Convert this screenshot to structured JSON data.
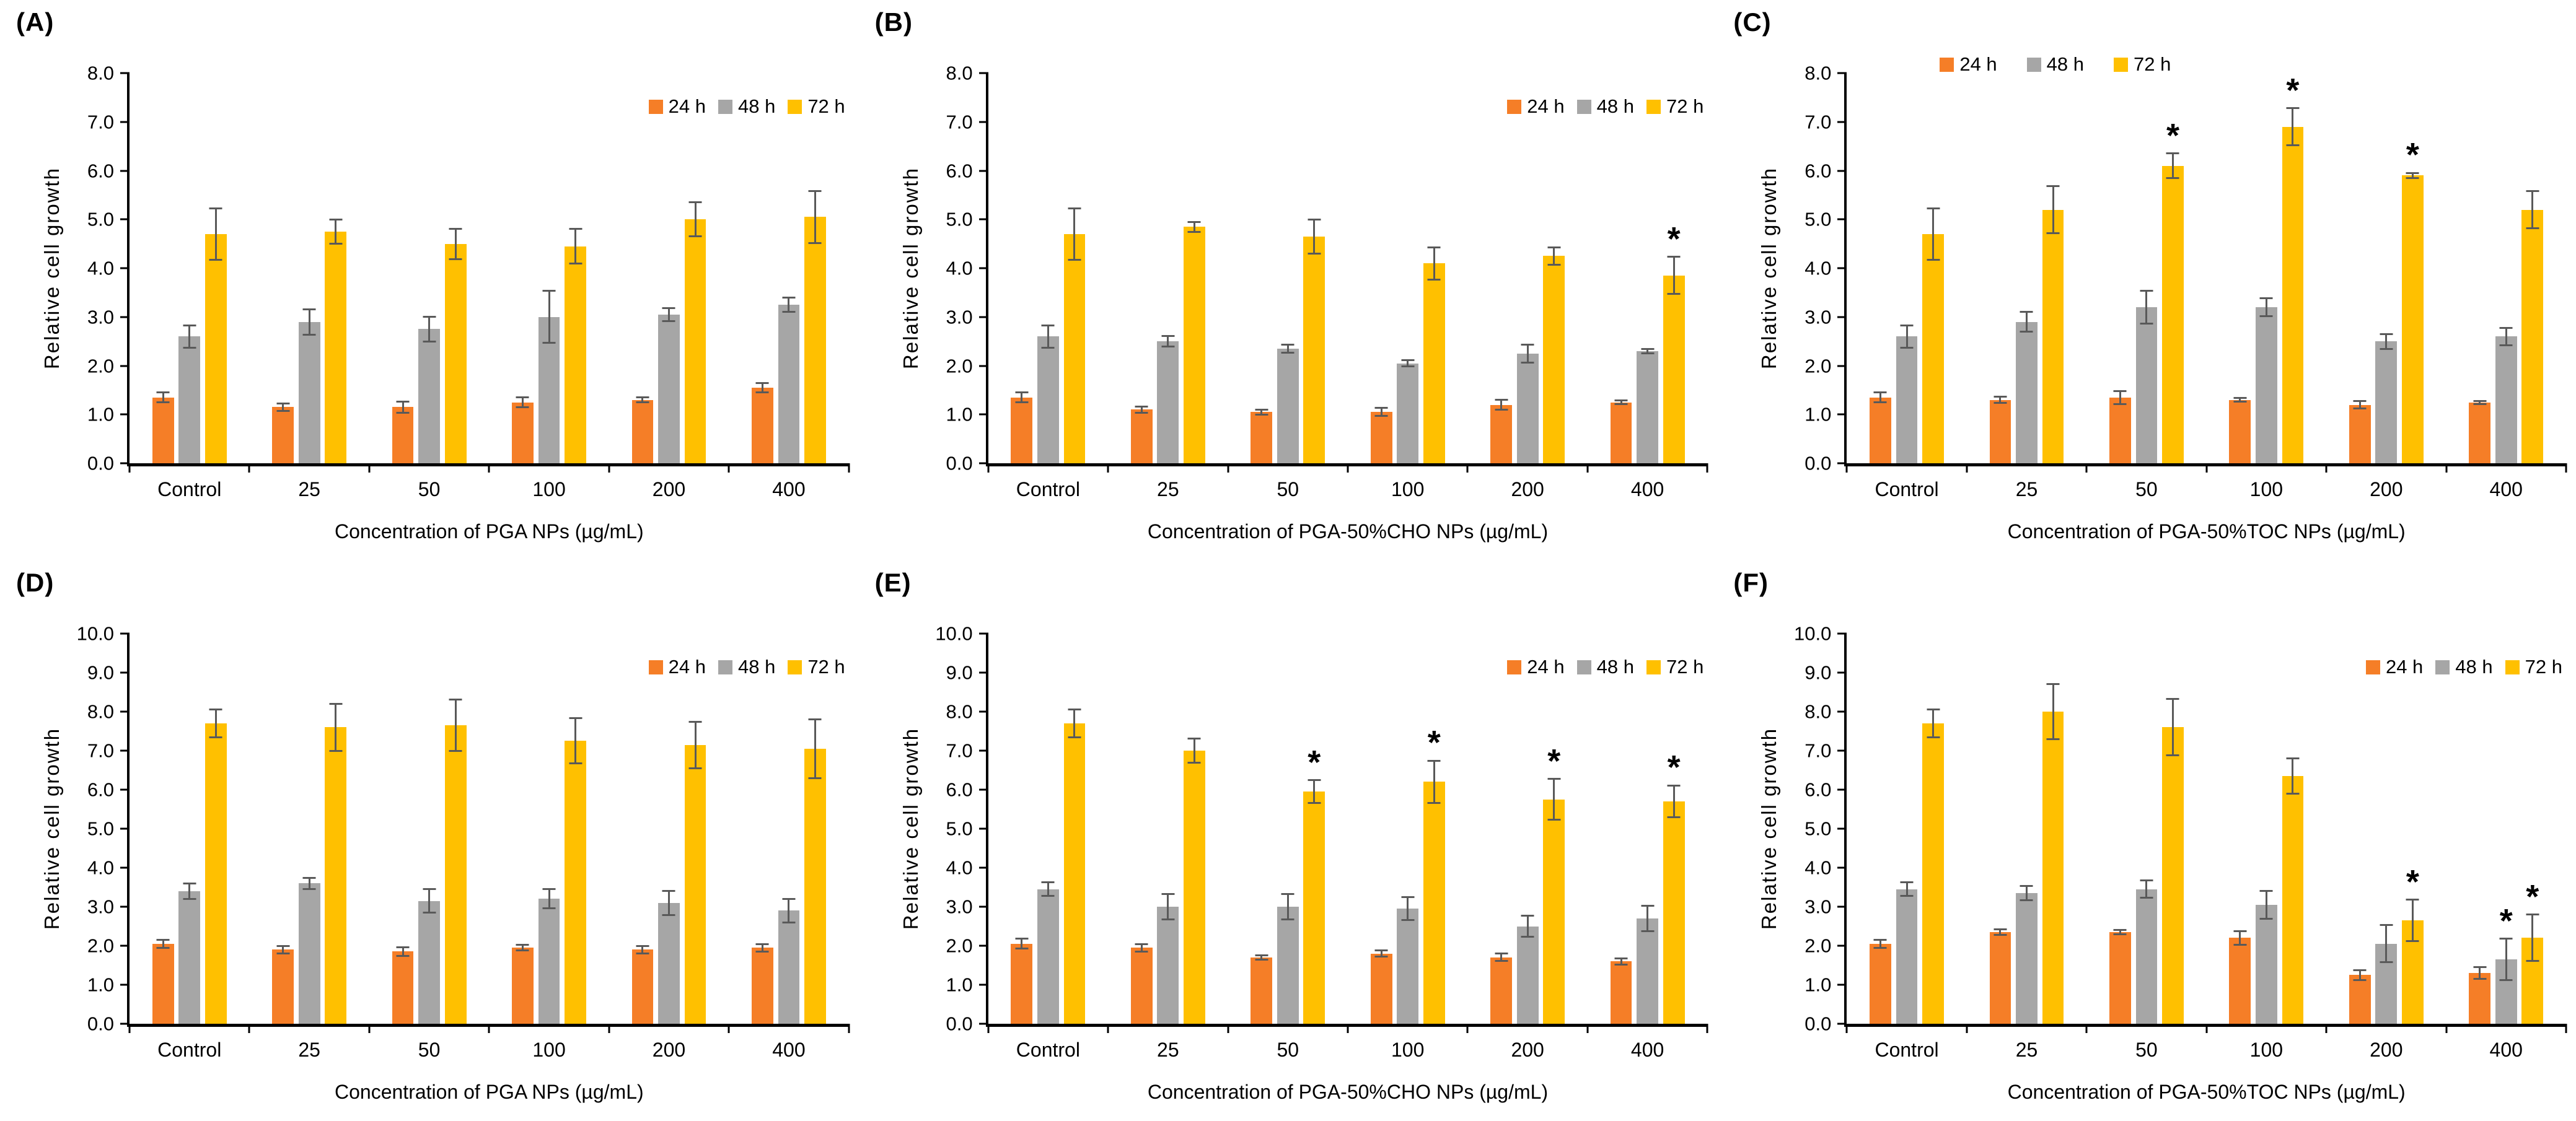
{
  "figure": {
    "background": "#ffffff",
    "text_color": "#000000",
    "error_bar_color": "#595959",
    "axis_color": "#000000",
    "series_colors": {
      "24 h": "#F57E27",
      "48 h": "#A6A6A6",
      "72 h": "#FFC000"
    },
    "significance_marker": "*"
  },
  "chart_data": [
    {
      "type": "bar",
      "panel": "A",
      "panel_label": "(A)",
      "ylabel": "Relative cell growth",
      "xlabel": "Concentration of PGA NPs (µg/mL)",
      "ylim": [
        0,
        8.0
      ],
      "ytick_step": 1.0,
      "grid": false,
      "legend_position": "top-right",
      "categories": [
        "Control",
        "25",
        "50",
        "100",
        "200",
        "400"
      ],
      "series": [
        {
          "name": "24 h",
          "color": "#F57E27",
          "values": [
            1.35,
            1.15,
            1.15,
            1.25,
            1.3,
            1.55
          ],
          "errors": [
            0.12,
            0.1,
            0.13,
            0.12,
            0.07,
            0.12
          ],
          "significance": [
            0,
            0,
            0,
            0,
            0,
            0
          ]
        },
        {
          "name": "48 h",
          "color": "#A6A6A6",
          "values": [
            2.6,
            2.9,
            2.75,
            3.0,
            3.05,
            3.25
          ],
          "errors": [
            0.25,
            0.28,
            0.27,
            0.55,
            0.15,
            0.17
          ],
          "significance": [
            0,
            0,
            0,
            0,
            0,
            0
          ]
        },
        {
          "name": "72 h",
          "color": "#FFC000",
          "values": [
            4.7,
            4.75,
            4.5,
            4.45,
            5.0,
            5.05
          ],
          "errors": [
            0.55,
            0.27,
            0.33,
            0.37,
            0.37,
            0.55
          ],
          "significance": [
            0,
            0,
            0,
            0,
            0,
            0
          ]
        }
      ]
    },
    {
      "type": "bar",
      "panel": "B",
      "panel_label": "(B)",
      "ylabel": "Relative cell growth",
      "xlabel": "Concentration of PGA-50%CHO NPs (µg/mL)",
      "ylim": [
        0,
        8.0
      ],
      "ytick_step": 1.0,
      "grid": false,
      "legend_position": "top-right",
      "categories": [
        "Control",
        "25",
        "50",
        "100",
        "200",
        "400"
      ],
      "series": [
        {
          "name": "24 h",
          "color": "#F57E27",
          "values": [
            1.35,
            1.1,
            1.05,
            1.05,
            1.2,
            1.25
          ],
          "errors": [
            0.12,
            0.08,
            0.07,
            0.1,
            0.12,
            0.06
          ],
          "significance": [
            0,
            0,
            0,
            0,
            0,
            0
          ]
        },
        {
          "name": "48 h",
          "color": "#A6A6A6",
          "values": [
            2.6,
            2.5,
            2.35,
            2.05,
            2.25,
            2.3
          ],
          "errors": [
            0.25,
            0.13,
            0.1,
            0.08,
            0.2,
            0.06
          ],
          "significance": [
            0,
            0,
            0,
            0,
            0,
            0
          ]
        },
        {
          "name": "72 h",
          "color": "#FFC000",
          "values": [
            4.7,
            4.85,
            4.65,
            4.1,
            4.25,
            3.85
          ],
          "errors": [
            0.55,
            0.12,
            0.37,
            0.35,
            0.2,
            0.4
          ],
          "significance": [
            0,
            0,
            0,
            0,
            0,
            1
          ]
        }
      ]
    },
    {
      "type": "bar",
      "panel": "C",
      "panel_label": "(C)",
      "ylabel": "Relative cell growth",
      "xlabel": "Concentration of PGA-50%TOC NPs (µg/mL)",
      "ylim": [
        0,
        8.0
      ],
      "ytick_step": 1.0,
      "grid": false,
      "legend_position": "top-left",
      "categories": [
        "Control",
        "25",
        "50",
        "100",
        "200",
        "400"
      ],
      "series": [
        {
          "name": "24 h",
          "color": "#F57E27",
          "values": [
            1.35,
            1.3,
            1.35,
            1.3,
            1.2,
            1.25
          ],
          "errors": [
            0.12,
            0.08,
            0.15,
            0.06,
            0.1,
            0.05
          ],
          "significance": [
            0,
            0,
            0,
            0,
            0,
            0
          ]
        },
        {
          "name": "48 h",
          "color": "#A6A6A6",
          "values": [
            2.6,
            2.9,
            3.2,
            3.2,
            2.5,
            2.6
          ],
          "errors": [
            0.25,
            0.22,
            0.35,
            0.2,
            0.17,
            0.2
          ],
          "significance": [
            0,
            0,
            0,
            0,
            0,
            0
          ]
        },
        {
          "name": "72 h",
          "color": "#FFC000",
          "values": [
            4.7,
            5.2,
            6.1,
            6.9,
            5.9,
            5.2
          ],
          "errors": [
            0.55,
            0.5,
            0.27,
            0.4,
            0.07,
            0.4
          ],
          "significance": [
            0,
            0,
            1,
            1,
            1,
            0
          ]
        }
      ]
    },
    {
      "type": "bar",
      "panel": "D",
      "panel_label": "(D)",
      "ylabel": "Relative cell growth",
      "xlabel": "Concentration of PGA NPs (µg/mL)",
      "ylim": [
        0,
        10.0
      ],
      "ytick_step": 1.0,
      "grid": false,
      "legend_position": "top-right",
      "categories": [
        "Control",
        "25",
        "50",
        "100",
        "200",
        "400"
      ],
      "series": [
        {
          "name": "24 h",
          "color": "#F57E27",
          "values": [
            2.05,
            1.9,
            1.85,
            1.95,
            1.9,
            1.95
          ],
          "errors": [
            0.13,
            0.12,
            0.13,
            0.1,
            0.12,
            0.12
          ],
          "significance": [
            0,
            0,
            0,
            0,
            0,
            0
          ]
        },
        {
          "name": "48 h",
          "color": "#A6A6A6",
          "values": [
            3.4,
            3.6,
            3.15,
            3.2,
            3.1,
            2.9
          ],
          "errors": [
            0.22,
            0.17,
            0.33,
            0.27,
            0.33,
            0.33
          ],
          "significance": [
            0,
            0,
            0,
            0,
            0,
            0
          ]
        },
        {
          "name": "72 h",
          "color": "#FFC000",
          "values": [
            7.7,
            7.6,
            7.65,
            7.25,
            7.15,
            7.05
          ],
          "errors": [
            0.38,
            0.63,
            0.68,
            0.6,
            0.62,
            0.78
          ],
          "significance": [
            0,
            0,
            0,
            0,
            0,
            0
          ]
        }
      ]
    },
    {
      "type": "bar",
      "panel": "E",
      "panel_label": "(E)",
      "ylabel": "Relative cell growth",
      "xlabel": "Concentration of PGA-50%CHO NPs (µg/mL)",
      "ylim": [
        0,
        10.0
      ],
      "ytick_step": 1.0,
      "grid": false,
      "legend_position": "top-right",
      "categories": [
        "Control",
        "25",
        "50",
        "100",
        "200",
        "400"
      ],
      "series": [
        {
          "name": "24 h",
          "color": "#F57E27",
          "values": [
            2.05,
            1.95,
            1.7,
            1.8,
            1.7,
            1.6
          ],
          "errors": [
            0.15,
            0.12,
            0.08,
            0.1,
            0.12,
            0.1
          ],
          "significance": [
            0,
            0,
            0,
            0,
            0,
            0
          ]
        },
        {
          "name": "48 h",
          "color": "#A6A6A6",
          "values": [
            3.45,
            3.0,
            3.0,
            2.95,
            2.5,
            2.7
          ],
          "errors": [
            0.2,
            0.35,
            0.35,
            0.32,
            0.3,
            0.35
          ],
          "significance": [
            0,
            0,
            0,
            0,
            0,
            0
          ]
        },
        {
          "name": "72 h",
          "color": "#FFC000",
          "values": [
            7.7,
            7.0,
            5.95,
            6.2,
            5.75,
            5.7
          ],
          "errors": [
            0.38,
            0.33,
            0.32,
            0.57,
            0.55,
            0.43
          ],
          "significance": [
            0,
            0,
            1,
            1,
            1,
            1
          ]
        }
      ]
    },
    {
      "type": "bar",
      "panel": "F",
      "panel_label": "(F)",
      "ylabel": "Relative cell growth",
      "xlabel": "Concentration of PGA-50%TOC NPs (µg/mL)",
      "ylim": [
        0,
        10.0
      ],
      "ytick_step": 1.0,
      "grid": false,
      "legend_position": "top-right",
      "categories": [
        "Control",
        "25",
        "50",
        "100",
        "200",
        "400"
      ],
      "series": [
        {
          "name": "24 h",
          "color": "#F57E27",
          "values": [
            2.05,
            2.35,
            2.35,
            2.2,
            1.25,
            1.3
          ],
          "errors": [
            0.13,
            0.1,
            0.08,
            0.2,
            0.15,
            0.17
          ],
          "significance": [
            0,
            0,
            0,
            0,
            0,
            0
          ]
        },
        {
          "name": "48 h",
          "color": "#A6A6A6",
          "values": [
            3.45,
            3.35,
            3.45,
            3.05,
            2.05,
            1.65
          ],
          "errors": [
            0.2,
            0.2,
            0.25,
            0.38,
            0.5,
            0.55
          ],
          "significance": [
            0,
            0,
            0,
            0,
            0,
            1
          ]
        },
        {
          "name": "72 h",
          "color": "#FFC000",
          "values": [
            7.7,
            8.0,
            7.6,
            6.35,
            2.65,
            2.2
          ],
          "errors": [
            0.38,
            0.73,
            0.75,
            0.47,
            0.55,
            0.62
          ],
          "significance": [
            0,
            0,
            0,
            0,
            1,
            1
          ]
        }
      ]
    }
  ]
}
